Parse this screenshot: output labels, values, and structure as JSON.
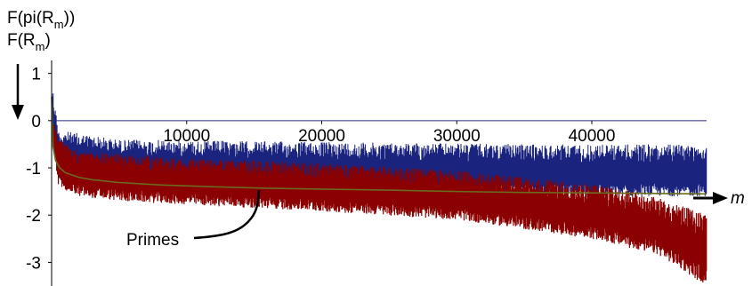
{
  "chart_data": {
    "type": "line",
    "title": "",
    "xlabel": "m",
    "ylabel": "",
    "xlim": [
      0,
      48500
    ],
    "ylim": [
      -3.5,
      1.2
    ],
    "x_ticks": [
      10000,
      20000,
      30000,
      40000
    ],
    "x_tick_labels": [
      "10000",
      "20000",
      "30000",
      "40000"
    ],
    "y_ticks": [
      1,
      0,
      -1,
      -2,
      -3
    ],
    "y_tick_labels": [
      "1",
      "0",
      "-1",
      "-2",
      "-3"
    ],
    "grid": false,
    "legend_position": "top-left",
    "series": [
      {
        "name": "F(pi(R_m))",
        "label_base": "F(pi(R",
        "label_sub": "m",
        "label_tail": "))",
        "color": "#8b0000",
        "style": "dense-vertical-lines",
        "upper_envelope": {
          "x": [
            0,
            500,
            2000,
            5000,
            10000,
            20000,
            30000,
            40000,
            45000,
            48500
          ],
          "y": [
            0.1,
            -0.4,
            -0.65,
            -0.7,
            -0.8,
            -0.9,
            -1.05,
            -1.35,
            -1.6,
            -2.0
          ]
        },
        "lower_envelope": {
          "x": [
            0,
            500,
            2000,
            5000,
            10000,
            20000,
            30000,
            40000,
            45000,
            48500
          ],
          "y": [
            -0.2,
            -1.4,
            -1.6,
            -1.7,
            -1.78,
            -1.92,
            -2.1,
            -2.5,
            -2.85,
            -3.5
          ]
        }
      },
      {
        "name": "F(R_m)",
        "label_base": "F(R",
        "label_sub": "m",
        "label_tail": ")",
        "color": "#1a237e",
        "style": "dense-vertical-lines",
        "upper_envelope": {
          "x": [
            0,
            500,
            5000,
            20000,
            35000,
            48500
          ],
          "y": [
            0.9,
            -0.2,
            -0.4,
            -0.45,
            -0.5,
            -0.5
          ]
        },
        "lower_envelope": {
          "x": [
            0,
            500,
            5000,
            20000,
            35000,
            48500
          ],
          "y": [
            -0.4,
            -1.2,
            -1.4,
            -1.5,
            -1.6,
            -1.6
          ]
        }
      },
      {
        "name": "Primes",
        "color": "#6b6b1f",
        "style": "line",
        "x": [
          0,
          100,
          300,
          600,
          1000,
          2000,
          3000,
          5000,
          8000,
          12000,
          16000,
          20000,
          25000,
          30000,
          35000,
          40000,
          48500
        ],
        "y": [
          0.5,
          -0.55,
          -0.85,
          -1.0,
          -1.1,
          -1.2,
          -1.25,
          -1.31,
          -1.36,
          -1.4,
          -1.43,
          -1.45,
          -1.47,
          -1.5,
          -1.52,
          -1.53,
          -1.55
        ]
      }
    ],
    "annotations": [
      {
        "text": "Primes",
        "target_series": "Primes",
        "target_x": 16000
      }
    ]
  }
}
